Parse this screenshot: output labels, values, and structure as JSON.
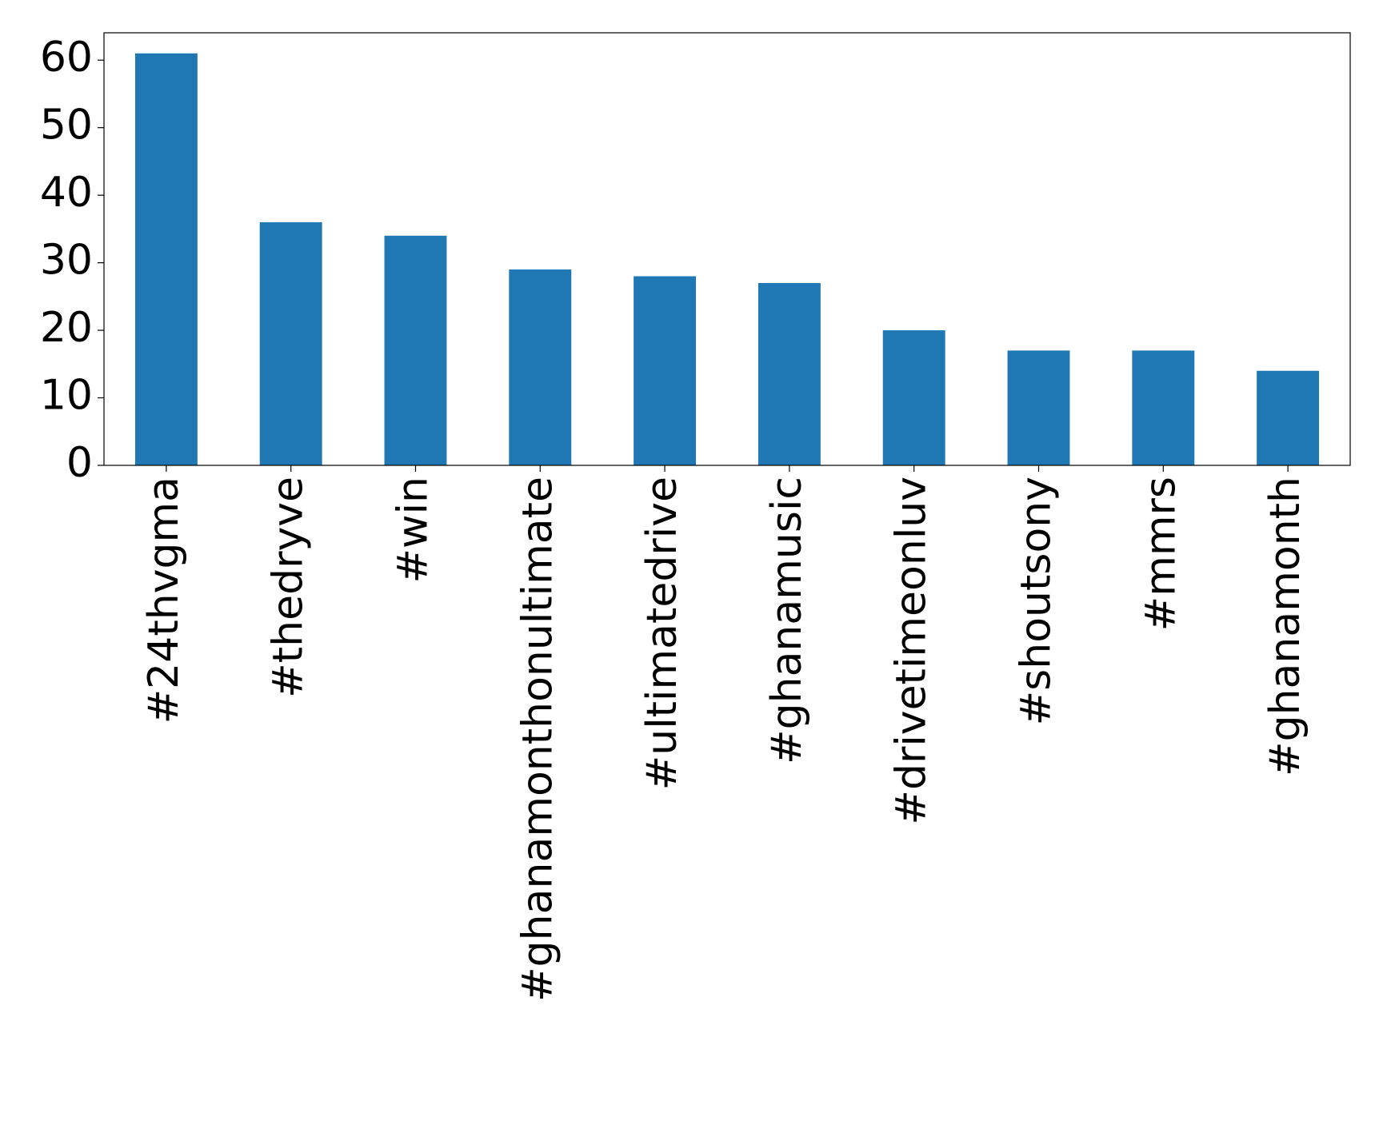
{
  "chart_data": {
    "type": "bar",
    "categories": [
      "#24thvgma",
      "#thedryve",
      "#win",
      "#ghanamonthonultimate",
      "#ultimatedrive",
      "#ghanamusic",
      "#drivetimeonluv",
      "#shoutsony",
      "#mmrs",
      "#ghanamonth"
    ],
    "values": [
      61,
      36,
      34,
      29,
      28,
      27,
      20,
      17,
      17,
      14
    ],
    "color": "#1f77b4",
    "ylim": [
      0,
      64.05
    ],
    "yticks": [
      0,
      10,
      20,
      30,
      40,
      50,
      60
    ],
    "grid": false
  }
}
